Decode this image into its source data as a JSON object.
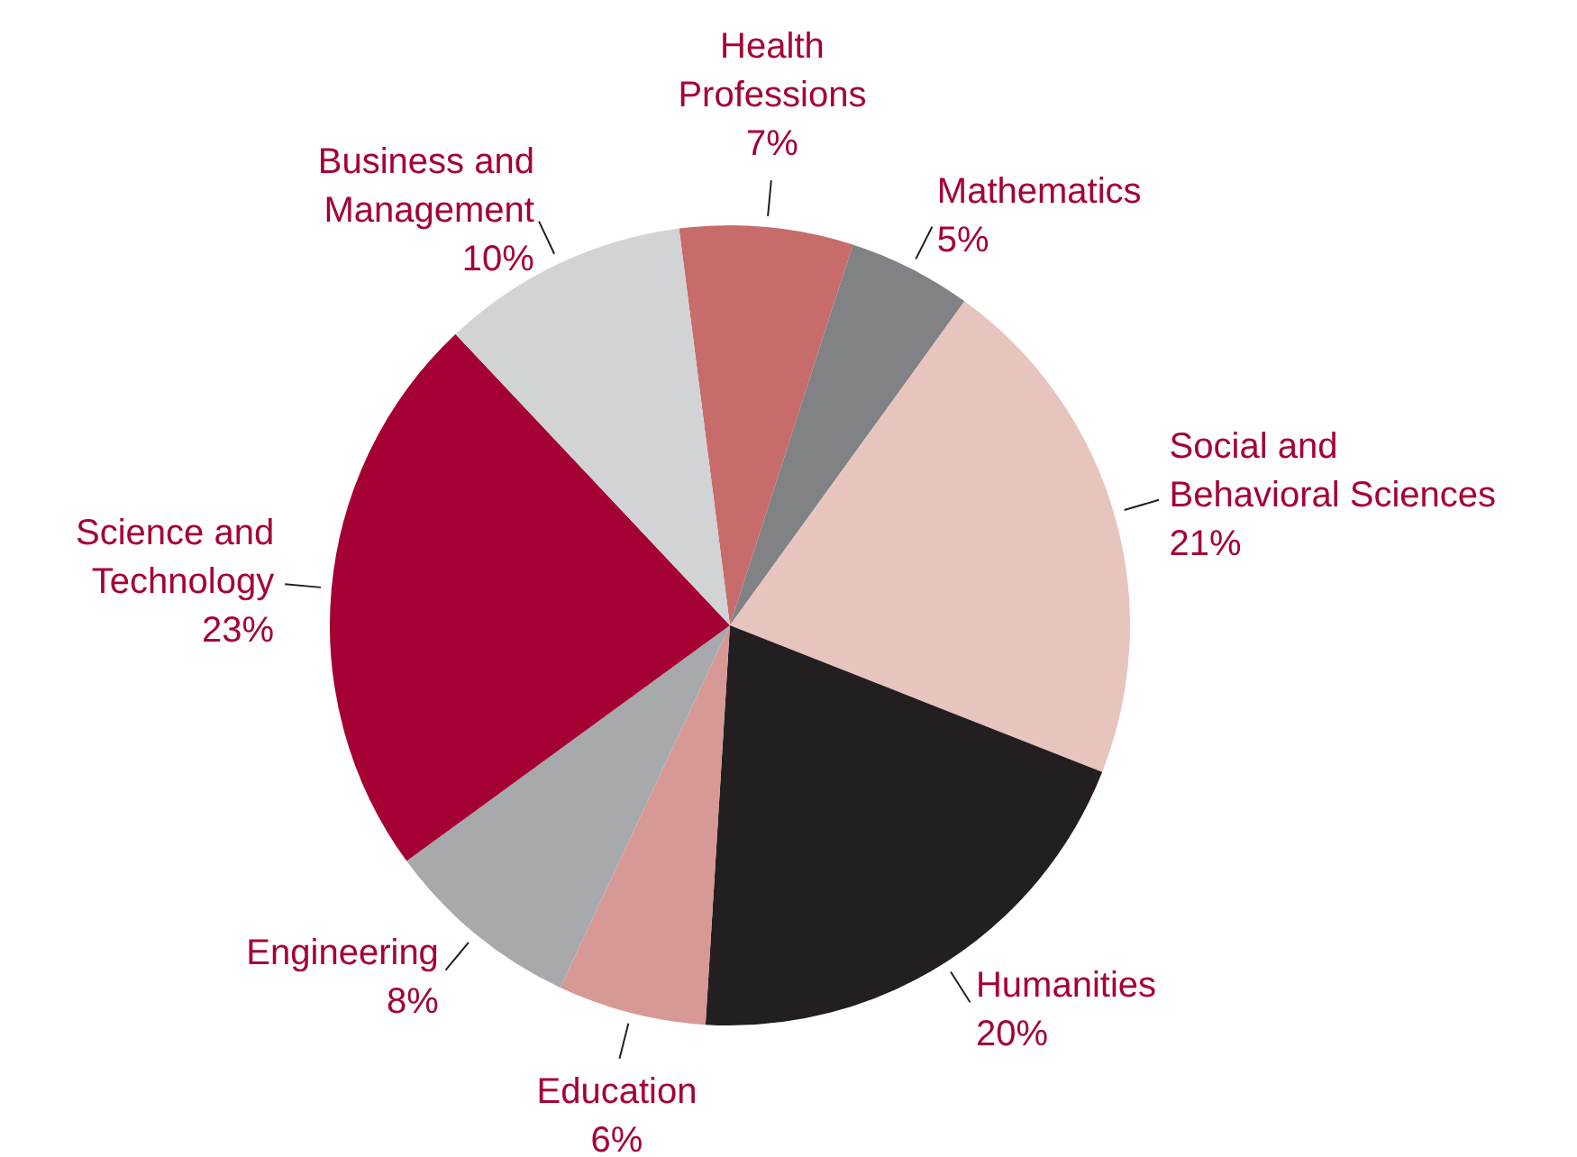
{
  "chart_data": {
    "type": "pie",
    "categories": [
      "Health Professions",
      "Mathematics",
      "Social and Behavioral Sciences",
      "Humanities",
      "Education",
      "Engineering",
      "Science and Technology",
      "Business and Management"
    ],
    "values": [
      7,
      5,
      21,
      20,
      6,
      8,
      23,
      10
    ],
    "value_labels": [
      "7%",
      "5%",
      "21%",
      "20%",
      "6%",
      "8%",
      "23%",
      "10%"
    ],
    "colors": [
      "#c76b6b",
      "#808285",
      "#e8c4be",
      "#231f20",
      "#d69996",
      "#a7a9ac",
      "#a50034",
      "#d1d3d4"
    ],
    "legend": false
  }
}
